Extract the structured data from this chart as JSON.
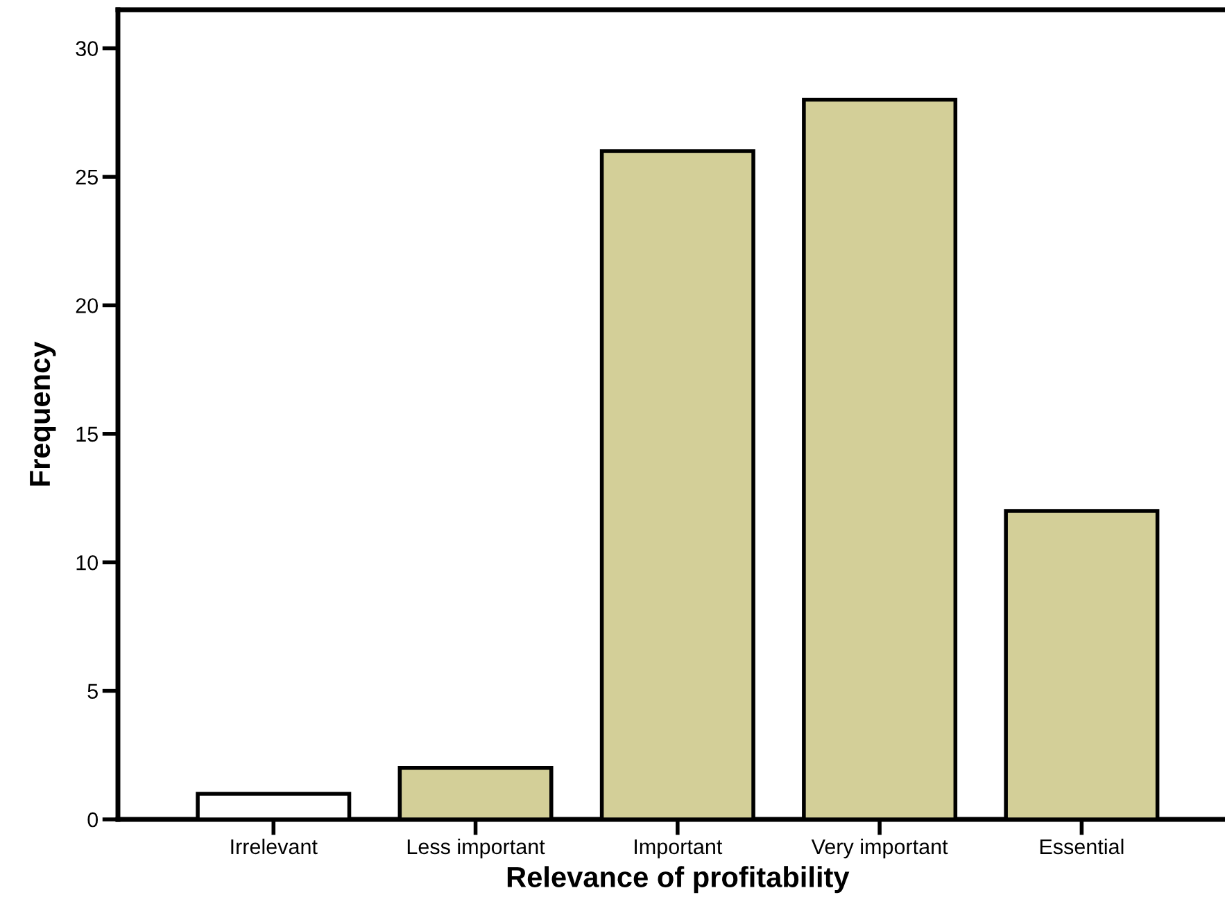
{
  "chart_data": {
    "type": "bar",
    "xlabel": "Relevance of profitability",
    "ylabel": "Frequency",
    "categories": [
      "Irrelevant",
      "Less important",
      "Important",
      "Very important",
      "Essential"
    ],
    "values": [
      1,
      2,
      26,
      28,
      12
    ],
    "colors": [
      "#ffffff",
      "#d3cf98",
      "#d3cf98",
      "#d3cf98",
      "#d3cf98"
    ],
    "ylim": [
      0,
      31.5
    ],
    "yticks": [
      0,
      5,
      10,
      15,
      20,
      25,
      30
    ],
    "grid": false
  }
}
